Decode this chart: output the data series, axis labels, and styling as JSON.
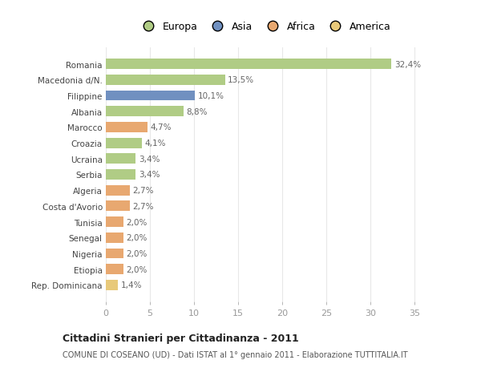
{
  "categories": [
    "Rep. Dominicana",
    "Etiopia",
    "Nigeria",
    "Senegal",
    "Tunisia",
    "Costa d'Avorio",
    "Algeria",
    "Serbia",
    "Ucraina",
    "Croazia",
    "Marocco",
    "Albania",
    "Filippine",
    "Macedonia d/N.",
    "Romania"
  ],
  "values": [
    1.4,
    2.0,
    2.0,
    2.0,
    2.0,
    2.7,
    2.7,
    3.4,
    3.4,
    4.1,
    4.7,
    8.8,
    10.1,
    13.5,
    32.4
  ],
  "labels": [
    "1,4%",
    "2,0%",
    "2,0%",
    "2,0%",
    "2,0%",
    "2,7%",
    "2,7%",
    "3,4%",
    "3,4%",
    "4,1%",
    "4,7%",
    "8,8%",
    "10,1%",
    "13,5%",
    "32,4%"
  ],
  "colors": [
    "#e8c97a",
    "#e8a870",
    "#e8a870",
    "#e8a870",
    "#e8a870",
    "#e8a870",
    "#e8a870",
    "#b0cc85",
    "#b0cc85",
    "#b0cc85",
    "#e8a870",
    "#b0cc85",
    "#7090c0",
    "#b0cc85",
    "#b0cc85"
  ],
  "legend_labels": [
    "Europa",
    "Asia",
    "Africa",
    "America"
  ],
  "legend_colors": [
    "#b0cc85",
    "#7090c0",
    "#e8a870",
    "#e8c97a"
  ],
  "title": "Cittadini Stranieri per Cittadinanza - 2011",
  "subtitle": "COMUNE DI COSEANO (UD) - Dati ISTAT al 1° gennaio 2011 - Elaborazione TUTTITALIA.IT",
  "xlim": [
    0,
    36
  ],
  "xticks": [
    0,
    5,
    10,
    15,
    20,
    25,
    30,
    35
  ],
  "bg_color": "#ffffff",
  "plot_bg_color": "#ffffff",
  "grid_color": "#e8e8e8"
}
